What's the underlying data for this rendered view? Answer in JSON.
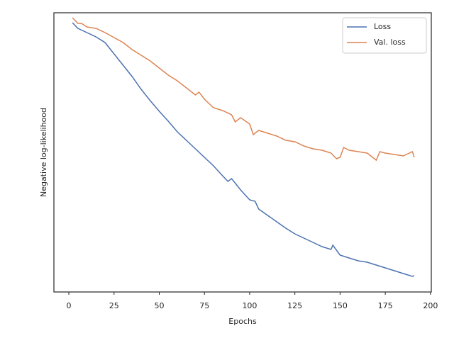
{
  "chart_data": {
    "type": "line",
    "xlabel": "Epochs",
    "ylabel": "Negative log-likelihood",
    "xlim": [
      -8.25,
      200.45
    ],
    "ylim": [
      0,
      394
    ],
    "xticks": [
      0,
      25,
      50,
      75,
      100,
      125,
      150,
      175,
      200
    ],
    "legend": "upper right",
    "series": [
      {
        "name": "Loss",
        "color": "#4c72b0",
        "x": [
          2,
          5,
          10,
          15,
          20,
          25,
          30,
          35,
          40,
          45,
          50,
          55,
          60,
          65,
          70,
          75,
          80,
          85,
          88,
          90,
          95,
          100,
          103,
          105,
          110,
          115,
          120,
          125,
          130,
          135,
          140,
          145,
          146,
          150,
          155,
          160,
          165,
          170,
          175,
          180,
          185,
          190,
          191
        ],
        "values": [
          380,
          372,
          366,
          360,
          352,
          336,
          320,
          304,
          286,
          270,
          255,
          241,
          226,
          214,
          202,
          190,
          178,
          164,
          156,
          160,
          144,
          130,
          128,
          117,
          108,
          99,
          90,
          82,
          76,
          70,
          64,
          60,
          66,
          52,
          48,
          44,
          42,
          38,
          34,
          30,
          26,
          22,
          23
        ]
      },
      {
        "name": "Val. loss",
        "color": "#dd8452",
        "x": [
          2,
          5,
          7,
          10,
          15,
          20,
          25,
          30,
          35,
          40,
          45,
          50,
          55,
          60,
          65,
          70,
          72,
          75,
          80,
          85,
          90,
          92,
          95,
          100,
          102,
          105,
          110,
          115,
          120,
          125,
          130,
          135,
          140,
          145,
          148,
          150,
          152,
          155,
          160,
          165,
          170,
          172,
          175,
          180,
          185,
          190,
          191
        ],
        "values": [
          387,
          379,
          379,
          374,
          372,
          366,
          359,
          352,
          342,
          334,
          326,
          316,
          306,
          298,
          288,
          278,
          282,
          272,
          260,
          256,
          250,
          240,
          246,
          237,
          222,
          228,
          224,
          220,
          214,
          212,
          206,
          202,
          200,
          196,
          188,
          190,
          204,
          200,
          198,
          196,
          186,
          198,
          196,
          194,
          192,
          198,
          190
        ]
      }
    ]
  }
}
